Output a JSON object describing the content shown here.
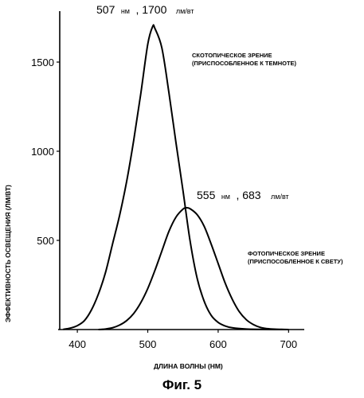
{
  "chart_data": {
    "type": "line",
    "xlabel": "ДЛИНА ВОЛНЫ (НМ)",
    "ylabel": "ЭФФЕКТИВНОСТЬ ОСВЕЩЕНИЯ (ЛМ/ВТ)",
    "xlim": [
      375,
      720
    ],
    "ylim": [
      0,
      1750
    ],
    "x_ticks": [
      400,
      500,
      600,
      700
    ],
    "y_ticks": [
      500,
      1000,
      1500
    ],
    "grid": false,
    "series": [
      {
        "name": "СКОТОПИЧЕСКОЕ ЗРЕНИЕ (ПРИСПОСОБЛЕННОЕ К ТЕМНОТЕ)",
        "x": [
          380,
          390,
          400,
          410,
          420,
          430,
          440,
          450,
          460,
          470,
          480,
          490,
          500,
          507,
          510,
          520,
          530,
          540,
          550,
          560,
          570,
          580,
          590,
          600,
          610,
          620,
          640,
          660,
          680,
          700
        ],
        "y": [
          1,
          8,
          22,
          50,
          110,
          200,
          320,
          480,
          640,
          830,
          1060,
          1320,
          1600,
          1700,
          1690,
          1580,
          1330,
          1050,
          780,
          500,
          290,
          160,
          80,
          40,
          20,
          10,
          3,
          1,
          0,
          0
        ]
      },
      {
        "name": "ФОТОПИЧЕСКОЕ ЗРЕНИЕ (ПРИСПОСОБЛЕННОЕ К СВЕТУ)",
        "x": [
          430,
          440,
          450,
          460,
          470,
          480,
          490,
          500,
          510,
          520,
          530,
          540,
          550,
          555,
          560,
          570,
          580,
          590,
          600,
          610,
          620,
          630,
          640,
          650,
          660,
          670,
          680,
          690,
          700
        ],
        "y": [
          0,
          3,
          10,
          25,
          50,
          90,
          150,
          230,
          330,
          440,
          550,
          630,
          675,
          683,
          678,
          645,
          580,
          480,
          370,
          260,
          170,
          100,
          55,
          28,
          12,
          5,
          2,
          1,
          0
        ]
      }
    ],
    "annotations": [
      {
        "x": 507,
        "y": 1700,
        "text": "507 НМ , 1700 ЛМ/ВТ"
      },
      {
        "x": 555,
        "y": 683,
        "text": "555 НМ , 683 ЛМ/ВТ"
      }
    ]
  },
  "labels": {
    "scotopic_line1": "СКОТОПИЧЕСКОЕ ЗРЕНИЕ",
    "scotopic_line2": "(ПРИСПОСОБЛЕННОЕ К ТЕМНОТЕ)",
    "photopic_line1": "ФОТОПИЧЕСКОЕ ЗРЕНИЕ",
    "photopic_line2": "(ПРИСПОСОБЛЕННОЕ К СВЕТУ)",
    "peak1_value": "507",
    "peak1_unit1": "нм",
    "peak1_value2": ", 1700",
    "peak1_unit2": "лм/вт",
    "peak2_value": "555",
    "peak2_unit1": "нм",
    "peak2_value2": ", 683",
    "peak2_unit2": "лм/вт"
  },
  "caption": "Фиг. 5"
}
